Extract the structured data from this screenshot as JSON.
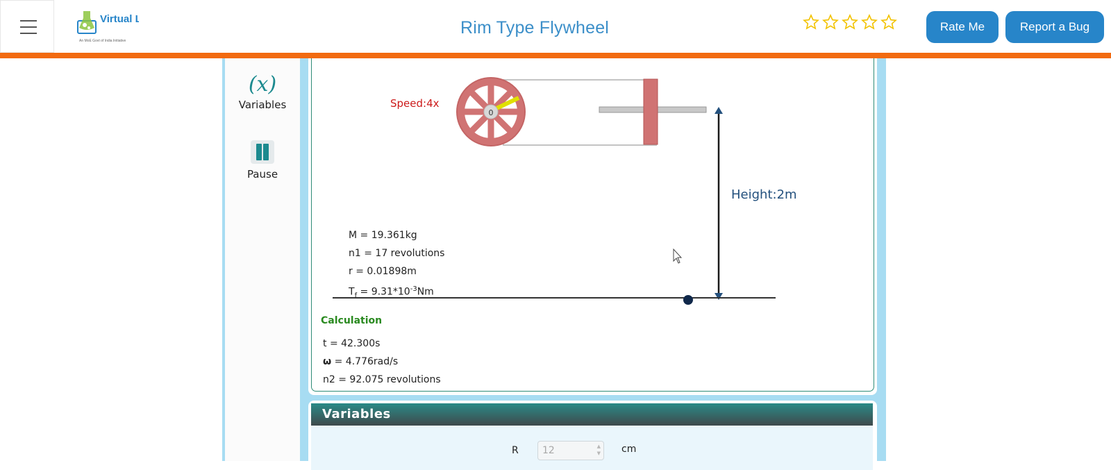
{
  "header": {
    "menu_icon": "hamburger-menu-icon",
    "logo_text": "Virtual Labs",
    "logo_tagline": "An MoE Govt of India Initiative",
    "title": "Rim Type Flywheel",
    "rating": {
      "stars_total": 5,
      "stars_filled": 0
    },
    "rate_button": "Rate Me",
    "bug_button": "Report a Bug"
  },
  "colors": {
    "accent_blue": "#2785c9",
    "orange_bar": "#f26a10",
    "title_blue": "#3c8fc9",
    "teal": "#1c8a8f",
    "wheel_red": "#d07373",
    "speed_red": "#cc1a1a",
    "calc_green": "#2a8a20",
    "height_blue": "#24517e"
  },
  "sidebar": {
    "tools": [
      {
        "label": "Variables",
        "icon": "variable-x-icon",
        "glyph": "(x)"
      },
      {
        "label": "Pause",
        "icon": "pause-icon"
      }
    ]
  },
  "simulation": {
    "speed": "Speed:4x",
    "height": "Height:2m",
    "axle_label": "0",
    "readings": {
      "M": "M = 19.361kg",
      "n1": "n1 = 17 revolutions",
      "r": "r = 0.01898m",
      "Tf_prefix": "T",
      "Tf_sub": "f",
      "Tf_mid": " = 9.31*10",
      "Tf_sup": "-3",
      "Tf_unit": "Nm"
    },
    "calculation": {
      "title": "Calculation",
      "t": "t = 42.300s",
      "omega_symbol": "ω",
      "omega_rest": " = 4.776rad/s",
      "n2": "n2 = 92.075 revolutions"
    }
  },
  "variables_panel": {
    "title": "Variables",
    "field_label": "R",
    "field_value": "12",
    "field_unit": "cm"
  }
}
